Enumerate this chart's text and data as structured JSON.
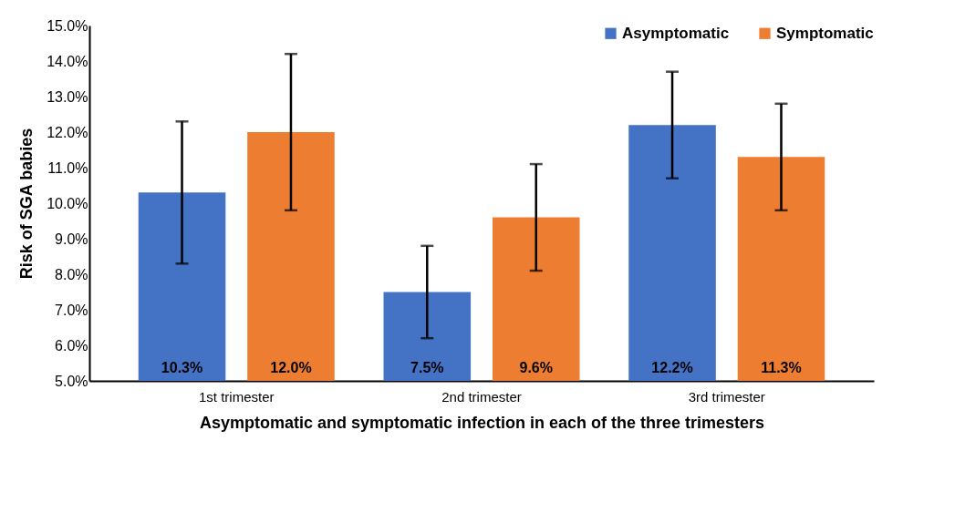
{
  "chart_data": {
    "type": "bar",
    "xlabel": "Asymptomatic and symptomatic infection in each of the three trimesters",
    "ylabel": "Risk of SGA babies",
    "categories": [
      "1st trimester",
      "2nd trimester",
      "3rd trimester"
    ],
    "series": [
      {
        "name": "Asymptomatic",
        "color": "#4472c4",
        "values": [
          10.3,
          7.5,
          12.2
        ],
        "errors": [
          [
            8.3,
            12.3
          ],
          [
            6.2,
            8.8
          ],
          [
            10.7,
            13.7
          ]
        ],
        "value_labels": [
          "10.3%",
          "7.5%",
          "12.2%"
        ]
      },
      {
        "name": "Symptomatic",
        "color": "#ed7d31",
        "values": [
          12.0,
          9.6,
          11.3
        ],
        "errors": [
          [
            9.8,
            14.2
          ],
          [
            8.1,
            11.1
          ],
          [
            9.8,
            12.8
          ]
        ],
        "value_labels": [
          "12.0%",
          "9.6%",
          "11.3%"
        ]
      }
    ],
    "ylim": [
      5,
      15
    ],
    "yticks": [
      {
        "value": 5,
        "label": "5.0%"
      },
      {
        "value": 6,
        "label": "6.0%"
      },
      {
        "value": 7,
        "label": "7.0%"
      },
      {
        "value": 8,
        "label": "8.0%"
      },
      {
        "value": 9,
        "label": "9.0%"
      },
      {
        "value": 10,
        "label": "10.0%"
      },
      {
        "value": 11,
        "label": "11.0%"
      },
      {
        "value": 12,
        "label": "12.0%"
      },
      {
        "value": 13,
        "label": "13.0%"
      },
      {
        "value": 14,
        "label": "14.0%"
      },
      {
        "value": 15,
        "label": "15.0%"
      }
    ],
    "grid": false,
    "legend": "top right"
  }
}
